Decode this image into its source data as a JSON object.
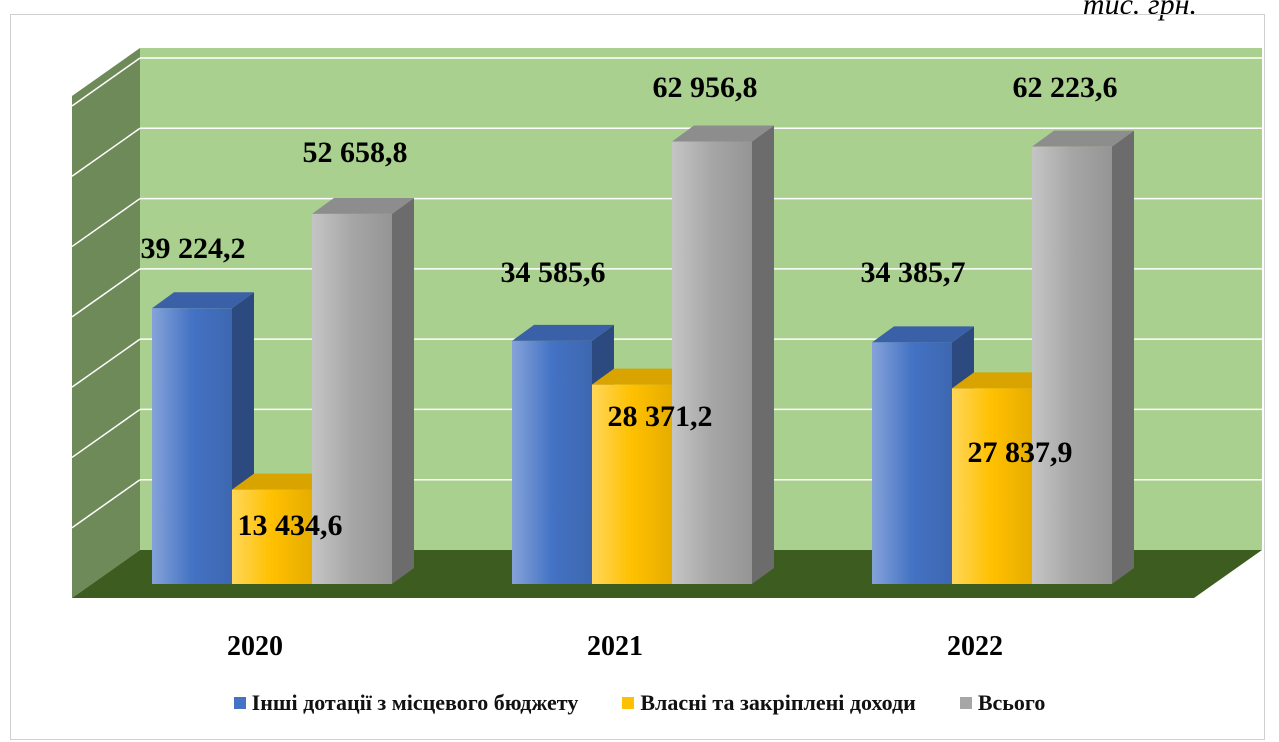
{
  "unit_label": "тис. грн.",
  "colors": {
    "wall": "#a9d08e",
    "floor": "#3d5c1f",
    "side_wall": "#6e8a58",
    "grid": "#ffffff",
    "series": [
      "#4472c4",
      "#ffc000",
      "#a6a6a6"
    ]
  },
  "chart_data": {
    "type": "bar",
    "style": "3d-clustered-column",
    "categories": [
      "2020",
      "2021",
      "2022"
    ],
    "series": [
      {
        "name": "Інші дотації з місцевого бюджету",
        "values": [
          39224.2,
          34585.6,
          34385.7
        ]
      },
      {
        "name": "Власні та закріплені доходи",
        "values": [
          13434.6,
          28371.2,
          27837.9
        ]
      },
      {
        "name": "Всього",
        "values": [
          52658.8,
          62956.8,
          62223.6
        ]
      }
    ],
    "data_labels": [
      [
        "39 224,2",
        "34 585,6",
        "34 385,7"
      ],
      [
        "13 434,6",
        "28 371,2",
        "27 837,9"
      ],
      [
        "52 658,8",
        "62 956,8",
        "62 223,6"
      ]
    ],
    "ylim": [
      0,
      70000
    ],
    "grid": true,
    "legend_position": "bottom"
  }
}
